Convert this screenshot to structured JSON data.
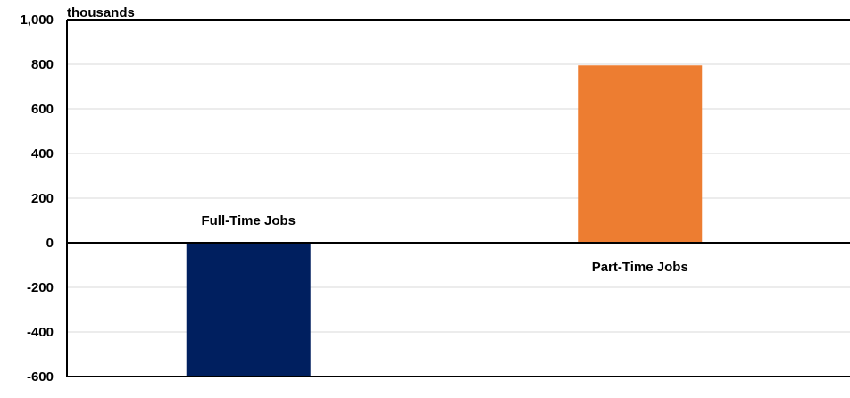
{
  "chart_data": {
    "type": "bar",
    "categories": [
      "Full-Time Jobs",
      "Part-Time Jobs"
    ],
    "values": [
      -600,
      795
    ],
    "colors": [
      "#001f5f",
      "#ed7d31"
    ],
    "ylabel": "thousands",
    "ylim": [
      -600,
      1000
    ],
    "yticks": [
      1000,
      800,
      600,
      400,
      200,
      0,
      -200,
      -400,
      -600
    ],
    "ytick_labels": [
      "1,000",
      "800",
      "600",
      "400",
      "200",
      "0",
      "-200",
      "-400",
      "-600"
    ],
    "grid": true,
    "legend": false
  }
}
